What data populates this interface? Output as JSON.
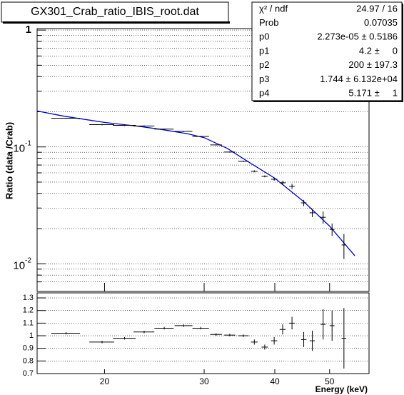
{
  "chart_data": [
    {
      "type": "scatter",
      "title": "GX301_Crab_ratio_IBIS_root.dat",
      "y_label": "Ratio (data /Crab)",
      "log_x": true,
      "log_y": true,
      "grid": true,
      "xlim": [
        15.2,
        58.7
      ],
      "ylim": [
        0.0058,
        1.03
      ],
      "yticks": [
        {
          "value": 0.01,
          "label": "10",
          "exponent": "-2"
        },
        {
          "value": 0.1,
          "label": "10",
          "exponent": "-1"
        },
        1
      ],
      "yminor": [
        0.007,
        0.008,
        0.009,
        0.02,
        0.03,
        0.04,
        0.05,
        0.06,
        0.07,
        0.08,
        0.09,
        0.2,
        0.3,
        0.4,
        0.5,
        0.6,
        0.7,
        0.8,
        0.9
      ],
      "color": "#000000",
      "x": [
        17.1,
        19.8,
        21.7,
        23.5,
        25.5,
        27.6,
        29.6,
        31.5,
        33.3,
        35.2,
        36.8,
        38.4,
        39.9,
        41.3,
        42.9,
        45.0,
        46.6,
        48.7,
        50.5,
        53.0
      ],
      "xerr": [
        1.0,
        1.0,
        1.0,
        1.0,
        1.0,
        1.0,
        1.0,
        0.75,
        0.75,
        0.75,
        0.5,
        0.5,
        0.5,
        0.5,
        0.5,
        0.5,
        0.5,
        0.5,
        0.5,
        0.5
      ],
      "values": [
        0.176,
        0.155,
        0.153,
        0.151,
        0.142,
        0.136,
        0.123,
        0.104,
        0.0904,
        0.0753,
        0.0619,
        0.056,
        0.0529,
        0.0493,
        0.046,
        0.0332,
        0.0273,
        0.025,
        0.0197,
        0.0145
      ],
      "yerr": [
        0.002,
        0.002,
        0.002,
        0.002,
        0.0015,
        0.0015,
        0.0013,
        0.0012,
        0.001,
        0.001,
        0.0012,
        0.0011,
        0.0016,
        0.002,
        0.0023,
        0.002,
        0.0022,
        0.003,
        0.0024,
        0.0035
      ],
      "fit_color": "#0000cc",
      "fit_x": [
        15.2,
        17,
        20,
        23,
        25,
        28,
        30,
        33,
        36,
        40,
        45,
        50,
        55.4
      ],
      "fit_y": [
        0.203,
        0.183,
        0.162,
        0.15,
        0.142,
        0.13,
        0.12,
        0.097,
        0.074,
        0.054,
        0.034,
        0.021,
        0.0117
      ],
      "stats": [
        {
          "label": "χ² / ndf",
          "value": "24.97 / 16"
        },
        {
          "label": "Prob",
          "value": "0.07035"
        },
        {
          "label": "p0",
          "value": "2.273e-05 ± 0.5186"
        },
        {
          "label": "p1",
          "value": "4.2 ±     0"
        },
        {
          "label": "p2",
          "value": "200 ± 197.3"
        },
        {
          "label": "p3",
          "value": "1.744 ± 6.132e+04"
        },
        {
          "label": "p4",
          "value": "5.171 ±     1"
        }
      ]
    },
    {
      "type": "scatter",
      "x_label": "Energy (keV)",
      "log_x": true,
      "grid": true,
      "xlim": [
        15.2,
        58.7
      ],
      "ylim": [
        0.7,
        1.34
      ],
      "xticks": [
        20,
        30,
        40,
        50
      ],
      "yticks": [
        0.7,
        0.8,
        0.9,
        1,
        1.1,
        1.2,
        1.3
      ],
      "color": "#000000",
      "x": [
        17.1,
        19.8,
        21.7,
        23.5,
        25.5,
        27.6,
        29.6,
        31.5,
        33.3,
        35.2,
        36.8,
        38.4,
        39.9,
        41.3,
        42.9,
        45.0,
        46.6,
        48.7,
        50.5,
        53.0
      ],
      "xerr": [
        1.0,
        1.0,
        1.0,
        1.0,
        1.0,
        1.0,
        1.0,
        0.75,
        0.75,
        0.75,
        0.5,
        0.5,
        0.5,
        0.5,
        0.5,
        0.5,
        0.5,
        0.5,
        0.5,
        0.5
      ],
      "values": [
        1.02,
        0.95,
        0.98,
        1.03,
        1.06,
        1.08,
        1.06,
        1.01,
        1.005,
        1.0,
        0.95,
        0.91,
        0.96,
        1.05,
        1.1,
        0.97,
        0.96,
        1.09,
        1.08,
        0.98
      ],
      "yerr": [
        0.01,
        0.01,
        0.01,
        0.01,
        0.01,
        0.01,
        0.01,
        0.01,
        0.01,
        0.01,
        0.02,
        0.02,
        0.03,
        0.04,
        0.05,
        0.06,
        0.08,
        0.12,
        0.12,
        0.24
      ]
    }
  ]
}
